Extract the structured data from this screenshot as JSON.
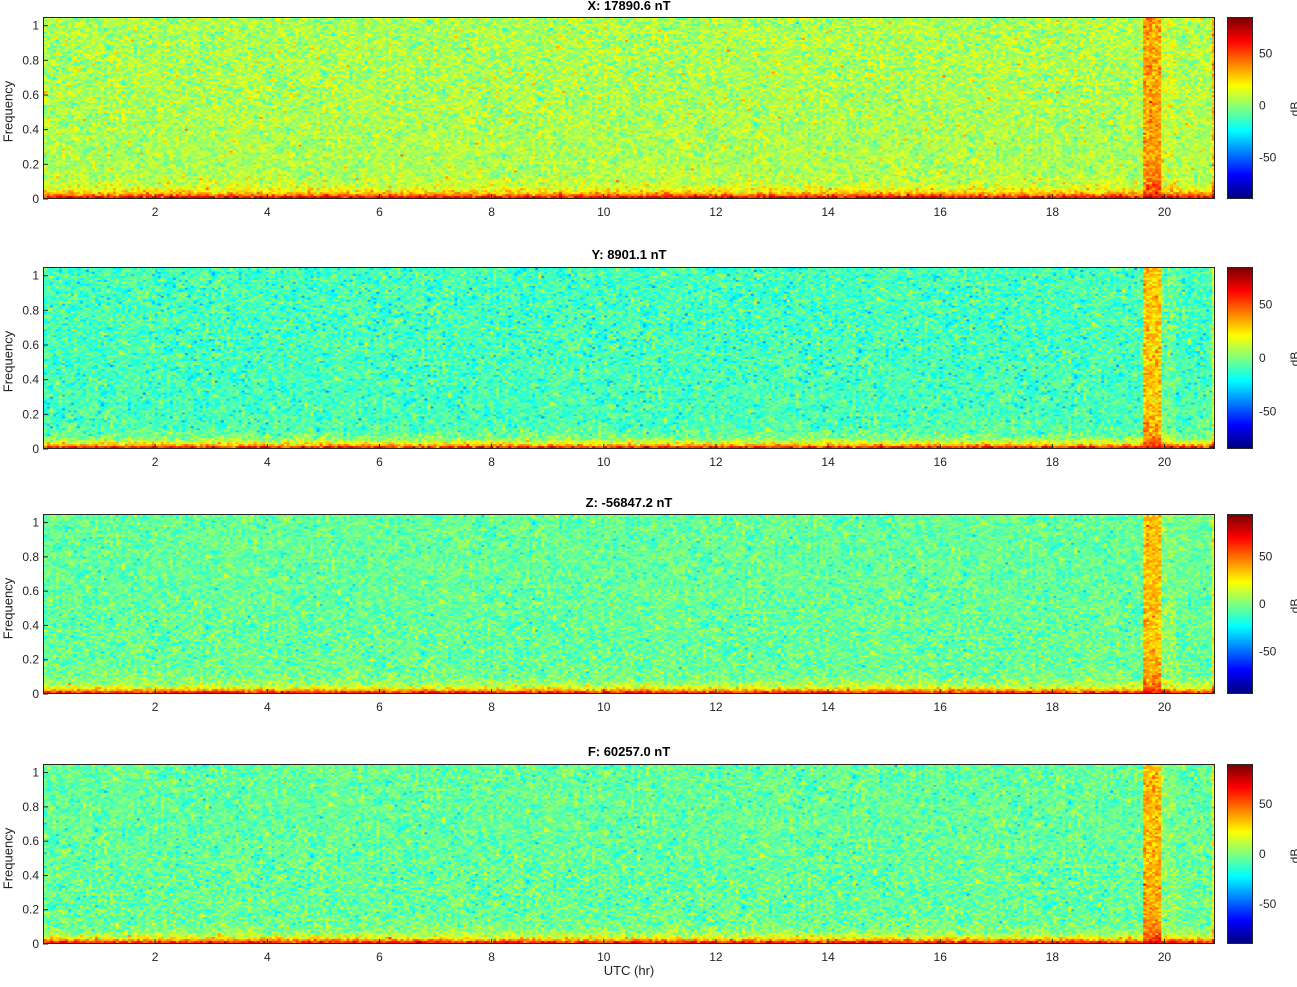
{
  "chart_data": [
    {
      "type": "heatmap",
      "title": "X: 17890.6 nT",
      "ylabel": "Frequency",
      "xlabel": "",
      "xlim": [
        0,
        20.9
      ],
      "ylim": [
        0,
        1.05
      ],
      "xticks": [
        2,
        4,
        6,
        8,
        10,
        12,
        14,
        16,
        18,
        20
      ],
      "yticks": [
        0,
        0.2,
        0.4,
        0.6,
        0.8,
        1
      ],
      "colorbar": {
        "label": "dB",
        "ticks": [
          -50,
          0,
          50
        ],
        "range": [
          -90,
          85
        ],
        "colormap": "jet"
      },
      "background_level_db": 5,
      "low_freq_level_db": 80,
      "event_hours": [
        19.6,
        19.95
      ],
      "event_level_db": 45
    },
    {
      "type": "heatmap",
      "title": "Y: 8901.1 nT",
      "ylabel": "Frequency",
      "xlabel": "",
      "xlim": [
        0,
        20.9
      ],
      "ylim": [
        0,
        1.05
      ],
      "xticks": [
        2,
        4,
        6,
        8,
        10,
        12,
        14,
        16,
        18,
        20
      ],
      "yticks": [
        0,
        0.2,
        0.4,
        0.6,
        0.8,
        1
      ],
      "colorbar": {
        "label": "dB",
        "ticks": [
          -50,
          0,
          50
        ],
        "range": [
          -85,
          85
        ],
        "colormap": "jet"
      },
      "background_level_db": -10,
      "low_freq_level_db": 80,
      "event_hours": [
        19.6,
        19.95
      ],
      "event_level_db": 40
    },
    {
      "type": "heatmap",
      "title": "Z: -56847.2 nT",
      "ylabel": "Frequency",
      "xlabel": "",
      "xlim": [
        0,
        20.9
      ],
      "ylim": [
        0,
        1.05
      ],
      "xticks": [
        2,
        4,
        6,
        8,
        10,
        12,
        14,
        16,
        18,
        20
      ],
      "yticks": [
        0,
        0.2,
        0.4,
        0.6,
        0.8,
        1
      ],
      "colorbar": {
        "label": "dB",
        "ticks": [
          -50,
          0,
          50
        ],
        "range": [
          -95,
          95
        ],
        "colormap": "jet"
      },
      "background_level_db": -5,
      "low_freq_level_db": 85,
      "event_hours": [
        19.6,
        19.95
      ],
      "event_level_db": 45
    },
    {
      "type": "heatmap",
      "title": "F: 60257.0 nT",
      "ylabel": "Frequency",
      "xlabel": "UTC (hr)",
      "xlim": [
        0,
        20.9
      ],
      "ylim": [
        0,
        1.05
      ],
      "xticks": [
        2,
        4,
        6,
        8,
        10,
        12,
        14,
        16,
        18,
        20
      ],
      "yticks": [
        0,
        0.2,
        0.4,
        0.6,
        0.8,
        1
      ],
      "colorbar": {
        "label": "dB",
        "ticks": [
          -50,
          0,
          50
        ],
        "range": [
          -90,
          90
        ],
        "colormap": "jet"
      },
      "background_level_db": -5,
      "low_freq_level_db": 85,
      "event_hours": [
        19.6,
        19.95
      ],
      "event_level_db": 45
    }
  ]
}
